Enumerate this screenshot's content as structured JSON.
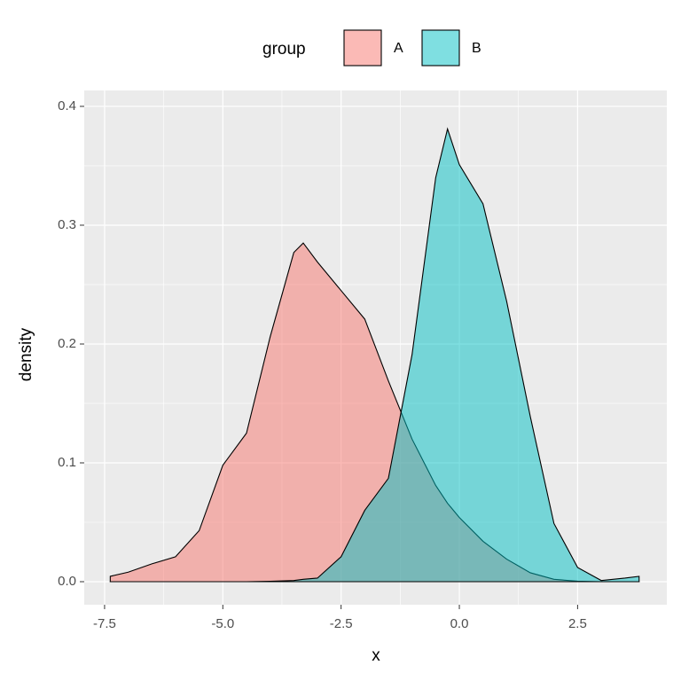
{
  "chart_data": {
    "type": "density",
    "x_label": "x",
    "y_label": "density",
    "legend_title": "group",
    "legend_position": "top",
    "x": [
      -7.38,
      -7,
      -6.5,
      -6,
      -5.5,
      -5,
      -4.5,
      -4,
      -3.5,
      -3.3,
      -3,
      -2.5,
      -2,
      -1.5,
      -1,
      -0.5,
      -0.25,
      0,
      0.5,
      1,
      1.5,
      2,
      2.5,
      3,
      3.5,
      3.8
    ],
    "series": [
      {
        "name": "A",
        "color": "#F8766D",
        "values": [
          0.0045,
          0.008,
          0.015,
          0.021,
          0.043,
          0.098,
          0.125,
          0.206,
          0.277,
          0.285,
          0.269,
          0.245,
          0.221,
          0.169,
          0.12,
          0.081,
          0.066,
          0.054,
          0.034,
          0.019,
          0.0075,
          0.002,
          0.0004,
          0,
          0,
          0
        ]
      },
      {
        "name": "B",
        "color": "#00BFC4",
        "values": [
          0,
          0,
          0,
          0,
          0,
          0,
          0,
          0.0003,
          0.001,
          0.002,
          0.003,
          0.021,
          0.06,
          0.087,
          0.191,
          0.34,
          0.381,
          0.351,
          0.318,
          0.236,
          0.139,
          0.049,
          0.012,
          0.001,
          0.003,
          0.0045
        ]
      }
    ],
    "xlim": [
      -7.93,
      4.386
    ],
    "ylim": [
      -0.0194,
      0.4134
    ],
    "xticks": [
      -7.5,
      {
        "value": -5,
        "label": "-5.0"
      },
      -2.5,
      {
        "value": 0,
        "label": "0.0"
      },
      2.5
    ],
    "yticks": [
      {
        "value": 0,
        "label": "0.0"
      },
      0.1,
      0.2,
      0.3,
      0.4
    ],
    "grid": true,
    "fill_opacity": 0.5
  }
}
